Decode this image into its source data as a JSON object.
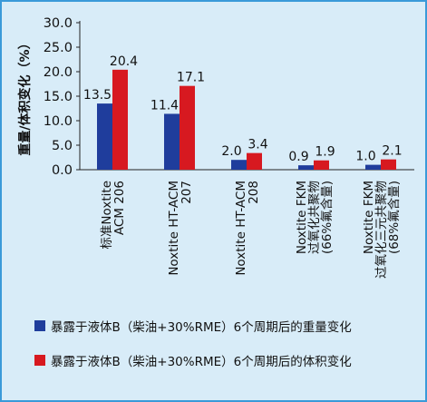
{
  "chart_data": {
    "type": "bar",
    "ylabel": "重量/体积变化（%）",
    "ylim": [
      0,
      30
    ],
    "yticks": [
      "0.0",
      "5.0",
      "10.0",
      "15.0",
      "20.0",
      "25.0",
      "30.0"
    ],
    "grid": false,
    "categories": [
      [
        "标准Noxtite",
        "ACM 206"
      ],
      [
        "Noxtite HT-ACM",
        "207"
      ],
      [
        "Noxtite HT-ACM",
        "208"
      ],
      [
        "Noxtite FKM",
        "过氧化共聚物",
        "(66%氟含量)"
      ],
      [
        "Noxtite FKM",
        "过氧化三元共聚物",
        "(68%氟含量)"
      ]
    ],
    "series": [
      {
        "name": "暴露于液体B（柴油+30%RME）6个周期后的重量变化",
        "color": "#1f3d9c",
        "values": [
          13.5,
          11.4,
          2.0,
          0.9,
          1.0
        ],
        "labels": [
          "13.5",
          "11.4",
          "2.0",
          "0.9",
          "1.0"
        ]
      },
      {
        "name": "暴露于液体B（柴油+30%RME）6个周期后的体积变化",
        "color": "#d71920",
        "values": [
          20.4,
          17.1,
          3.4,
          1.9,
          2.1
        ],
        "labels": [
          "20.4",
          "17.1",
          "3.4",
          "1.9",
          "2.1"
        ]
      }
    ],
    "legend_position": "bottom"
  }
}
